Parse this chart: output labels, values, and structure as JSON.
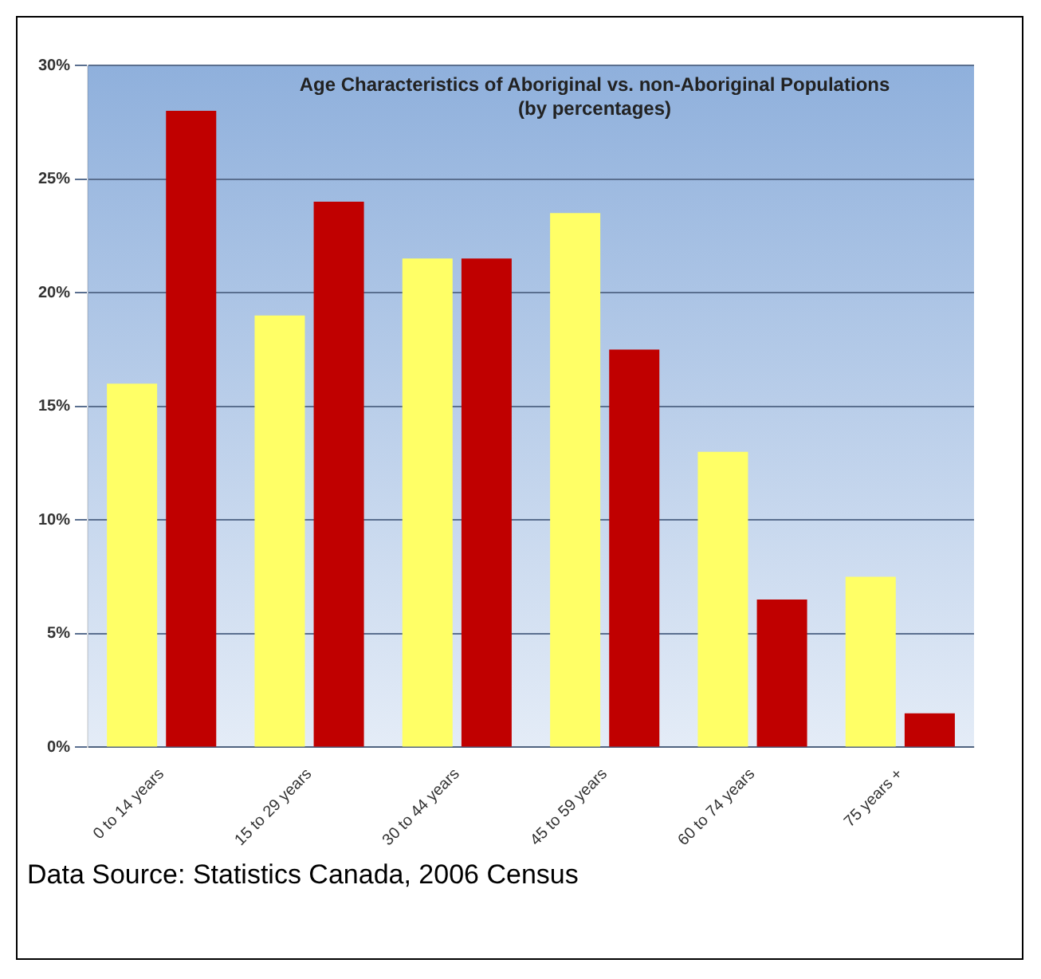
{
  "chart_data": {
    "type": "bar",
    "title": "Age Characteristics of Aboriginal vs. non-Aboriginal Populations",
    "subtitle": "(by percentages)",
    "categories": [
      "0 to 14 years",
      "15 to 29 years",
      "30 to 44 years",
      "45 to 59 years",
      "60 to 74 years",
      "75 years +"
    ],
    "series": [
      {
        "color": "#ffff66",
        "values": [
          16,
          19,
          21.5,
          23.5,
          13,
          7.5
        ]
      },
      {
        "color": "#c00000",
        "values": [
          28,
          24,
          21.5,
          17.5,
          6.5,
          1.5
        ]
      }
    ],
    "ylim": [
      0,
      30
    ],
    "yticks": [
      {
        "value": 0,
        "label": "0%"
      },
      {
        "value": 5,
        "label": "5%"
      },
      {
        "value": 10,
        "label": "10%"
      },
      {
        "value": 15,
        "label": "15%"
      },
      {
        "value": 20,
        "label": "20%"
      },
      {
        "value": 25,
        "label": "25%"
      },
      {
        "value": 30,
        "label": "30%"
      }
    ],
    "grid": "y",
    "legend": false,
    "annotations": [
      "Data Source: Statistics Canada, 2006 Census"
    ]
  }
}
